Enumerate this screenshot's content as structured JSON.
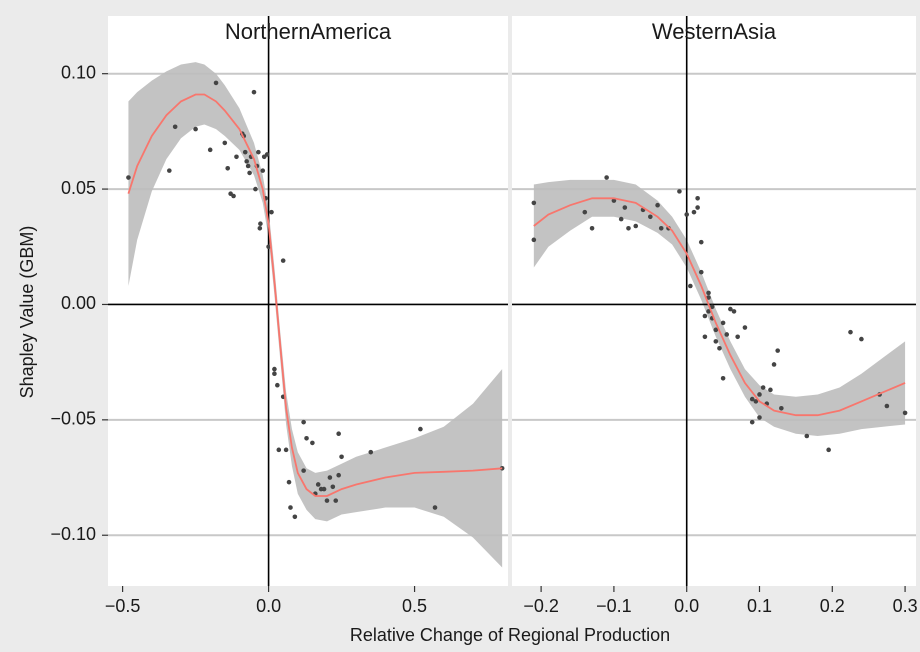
{
  "chart_data": {
    "type": "scatter",
    "xlabel": "Relative Change of Regional Production",
    "ylabel": "Shapley Value (GBM)",
    "ylim": [
      -0.122,
      0.125
    ],
    "yticks": [
      -0.1,
      -0.05,
      0.0,
      0.05,
      0.1
    ],
    "ytick_labels": [
      "−0.10",
      "−0.05",
      "0.00",
      "0.05",
      "0.10"
    ],
    "grid": true,
    "colors": {
      "points": "#444444",
      "smooth": "#f8766d",
      "ribbon": "#bdbdbd",
      "panel": "#ffffff",
      "background": "#ebebeb",
      "grid": "#c8c8c8",
      "reference": "#000000"
    },
    "panels": [
      {
        "name": "NorthernAmerica",
        "xlim": [
          -0.55,
          0.82
        ],
        "xticks": [
          -0.5,
          0.0,
          0.5
        ],
        "xtick_labels": [
          "−0.5",
          "0.0",
          "0.5"
        ],
        "points": [
          [
            -0.48,
            0.055
          ],
          [
            -0.32,
            0.077
          ],
          [
            -0.34,
            0.058
          ],
          [
            -0.25,
            0.076
          ],
          [
            -0.18,
            0.096
          ],
          [
            -0.2,
            0.067
          ],
          [
            -0.15,
            0.07
          ],
          [
            -0.14,
            0.059
          ],
          [
            -0.13,
            0.048
          ],
          [
            -0.12,
            0.047
          ],
          [
            -0.11,
            0.064
          ],
          [
            -0.09,
            0.074
          ],
          [
            -0.085,
            0.073
          ],
          [
            -0.08,
            0.066
          ],
          [
            -0.075,
            0.062
          ],
          [
            -0.07,
            0.06
          ],
          [
            -0.065,
            0.057
          ],
          [
            -0.06,
            0.064
          ],
          [
            -0.05,
            0.092
          ],
          [
            -0.045,
            0.05
          ],
          [
            -0.04,
            0.06
          ],
          [
            -0.035,
            0.066
          ],
          [
            -0.03,
            0.033
          ],
          [
            -0.028,
            0.035
          ],
          [
            -0.02,
            0.058
          ],
          [
            -0.015,
            0.064
          ],
          [
            -0.01,
            0.046
          ],
          [
            -0.005,
            0.065
          ],
          [
            0.0,
            0.025
          ],
          [
            0.01,
            0.04
          ],
          [
            0.02,
            -0.028
          ],
          [
            0.02,
            -0.03
          ],
          [
            0.03,
            -0.035
          ],
          [
            0.035,
            -0.063
          ],
          [
            0.05,
            0.019
          ],
          [
            0.05,
            -0.04
          ],
          [
            0.06,
            -0.063
          ],
          [
            0.07,
            -0.077
          ],
          [
            0.075,
            -0.088
          ],
          [
            0.09,
            -0.092
          ],
          [
            0.12,
            -0.051
          ],
          [
            0.12,
            -0.072
          ],
          [
            0.13,
            -0.058
          ],
          [
            0.15,
            -0.06
          ],
          [
            0.16,
            -0.082
          ],
          [
            0.17,
            -0.078
          ],
          [
            0.18,
            -0.08
          ],
          [
            0.19,
            -0.08
          ],
          [
            0.2,
            -0.085
          ],
          [
            0.21,
            -0.075
          ],
          [
            0.22,
            -0.079
          ],
          [
            0.23,
            -0.085
          ],
          [
            0.24,
            -0.074
          ],
          [
            0.25,
            -0.066
          ],
          [
            0.24,
            -0.056
          ],
          [
            0.35,
            -0.064
          ],
          [
            0.52,
            -0.054
          ],
          [
            0.57,
            -0.088
          ],
          [
            0.8,
            -0.071
          ]
        ],
        "smooth": [
          [
            -0.48,
            0.048
          ],
          [
            -0.45,
            0.06
          ],
          [
            -0.4,
            0.073
          ],
          [
            -0.35,
            0.082
          ],
          [
            -0.3,
            0.088
          ],
          [
            -0.25,
            0.091
          ],
          [
            -0.22,
            0.091
          ],
          [
            -0.18,
            0.088
          ],
          [
            -0.15,
            0.084
          ],
          [
            -0.1,
            0.076
          ],
          [
            -0.05,
            0.063
          ],
          [
            -0.02,
            0.05
          ],
          [
            0.0,
            0.035
          ],
          [
            0.02,
            0.01
          ],
          [
            0.04,
            -0.018
          ],
          [
            0.06,
            -0.045
          ],
          [
            0.08,
            -0.062
          ],
          [
            0.1,
            -0.073
          ],
          [
            0.13,
            -0.08
          ],
          [
            0.16,
            -0.083
          ],
          [
            0.2,
            -0.083
          ],
          [
            0.25,
            -0.08
          ],
          [
            0.3,
            -0.078
          ],
          [
            0.4,
            -0.075
          ],
          [
            0.5,
            -0.073
          ],
          [
            0.6,
            -0.0725
          ],
          [
            0.7,
            -0.072
          ],
          [
            0.8,
            -0.071
          ]
        ],
        "upper": [
          [
            -0.48,
            0.088
          ],
          [
            -0.45,
            0.092
          ],
          [
            -0.4,
            0.097
          ],
          [
            -0.35,
            0.101
          ],
          [
            -0.3,
            0.104
          ],
          [
            -0.25,
            0.105
          ],
          [
            -0.22,
            0.104
          ],
          [
            -0.18,
            0.1
          ],
          [
            -0.15,
            0.095
          ],
          [
            -0.1,
            0.085
          ],
          [
            -0.05,
            0.07
          ],
          [
            -0.02,
            0.056
          ],
          [
            0.0,
            0.041
          ],
          [
            0.02,
            0.016
          ],
          [
            0.04,
            -0.012
          ],
          [
            0.06,
            -0.038
          ],
          [
            0.08,
            -0.054
          ],
          [
            0.1,
            -0.064
          ],
          [
            0.13,
            -0.071
          ],
          [
            0.16,
            -0.073
          ],
          [
            0.2,
            -0.072
          ],
          [
            0.25,
            -0.069
          ],
          [
            0.3,
            -0.066
          ],
          [
            0.4,
            -0.062
          ],
          [
            0.5,
            -0.058
          ],
          [
            0.6,
            -0.053
          ],
          [
            0.7,
            -0.043
          ],
          [
            0.8,
            -0.028
          ]
        ],
        "lower": [
          [
            -0.48,
            0.008
          ],
          [
            -0.45,
            0.028
          ],
          [
            -0.4,
            0.049
          ],
          [
            -0.35,
            0.063
          ],
          [
            -0.3,
            0.072
          ],
          [
            -0.25,
            0.077
          ],
          [
            -0.22,
            0.078
          ],
          [
            -0.18,
            0.076
          ],
          [
            -0.15,
            0.073
          ],
          [
            -0.1,
            0.067
          ],
          [
            -0.05,
            0.056
          ],
          [
            -0.02,
            0.044
          ],
          [
            0.0,
            0.029
          ],
          [
            0.02,
            0.004
          ],
          [
            0.04,
            -0.024
          ],
          [
            0.06,
            -0.052
          ],
          [
            0.08,
            -0.07
          ],
          [
            0.1,
            -0.082
          ],
          [
            0.13,
            -0.089
          ],
          [
            0.16,
            -0.093
          ],
          [
            0.2,
            -0.094
          ],
          [
            0.25,
            -0.091
          ],
          [
            0.3,
            -0.09
          ],
          [
            0.4,
            -0.088
          ],
          [
            0.5,
            -0.088
          ],
          [
            0.6,
            -0.092
          ],
          [
            0.7,
            -0.101
          ],
          [
            0.8,
            -0.114
          ]
        ]
      },
      {
        "name": "WesternAsia",
        "xlim": [
          -0.24,
          0.315
        ],
        "xticks": [
          -0.2,
          -0.1,
          0.0,
          0.1,
          0.2,
          0.3
        ],
        "xtick_labels": [
          "−0.2",
          "−0.1",
          "0.0",
          "0.1",
          "0.2",
          "0.3"
        ],
        "points": [
          [
            -0.21,
            0.044
          ],
          [
            -0.21,
            0.028
          ],
          [
            -0.14,
            0.04
          ],
          [
            -0.13,
            0.033
          ],
          [
            -0.11,
            0.055
          ],
          [
            -0.1,
            0.045
          ],
          [
            -0.09,
            0.037
          ],
          [
            -0.085,
            0.042
          ],
          [
            -0.08,
            0.033
          ],
          [
            -0.07,
            0.034
          ],
          [
            -0.06,
            0.041
          ],
          [
            -0.05,
            0.038
          ],
          [
            -0.04,
            0.043
          ],
          [
            -0.035,
            0.033
          ],
          [
            -0.025,
            0.033
          ],
          [
            -0.01,
            0.049
          ],
          [
            0.0,
            0.039
          ],
          [
            0.005,
            0.008
          ],
          [
            0.01,
            0.04
          ],
          [
            0.015,
            0.046
          ],
          [
            0.015,
            0.042
          ],
          [
            0.02,
            0.027
          ],
          [
            0.02,
            0.014
          ],
          [
            0.025,
            -0.005
          ],
          [
            0.025,
            -0.014
          ],
          [
            0.03,
            0.005
          ],
          [
            0.03,
            0.003
          ],
          [
            0.03,
            -0.003
          ],
          [
            0.035,
            -0.001
          ],
          [
            0.035,
            -0.006
          ],
          [
            0.04,
            -0.011
          ],
          [
            0.04,
            -0.016
          ],
          [
            0.045,
            -0.019
          ],
          [
            0.05,
            -0.032
          ],
          [
            0.05,
            -0.008
          ],
          [
            0.055,
            -0.013
          ],
          [
            0.06,
            -0.002
          ],
          [
            0.065,
            -0.003
          ],
          [
            0.07,
            -0.014
          ],
          [
            0.08,
            -0.01
          ],
          [
            0.09,
            -0.051
          ],
          [
            0.09,
            -0.041
          ],
          [
            0.095,
            -0.042
          ],
          [
            0.1,
            -0.049
          ],
          [
            0.1,
            -0.039
          ],
          [
            0.105,
            -0.036
          ],
          [
            0.11,
            -0.043
          ],
          [
            0.115,
            -0.037
          ],
          [
            0.12,
            -0.026
          ],
          [
            0.125,
            -0.02
          ],
          [
            0.13,
            -0.045
          ],
          [
            0.165,
            -0.057
          ],
          [
            0.195,
            -0.063
          ],
          [
            0.225,
            -0.012
          ],
          [
            0.24,
            -0.015
          ],
          [
            0.265,
            -0.039
          ],
          [
            0.275,
            -0.044
          ],
          [
            0.3,
            -0.047
          ]
        ],
        "smooth": [
          [
            -0.21,
            0.034
          ],
          [
            -0.19,
            0.039
          ],
          [
            -0.16,
            0.043
          ],
          [
            -0.13,
            0.046
          ],
          [
            -0.1,
            0.046
          ],
          [
            -0.07,
            0.044
          ],
          [
            -0.04,
            0.038
          ],
          [
            -0.02,
            0.032
          ],
          [
            0.0,
            0.022
          ],
          [
            0.02,
            0.008
          ],
          [
            0.04,
            -0.008
          ],
          [
            0.06,
            -0.022
          ],
          [
            0.08,
            -0.034
          ],
          [
            0.1,
            -0.042
          ],
          [
            0.12,
            -0.046
          ],
          [
            0.15,
            -0.048
          ],
          [
            0.18,
            -0.048
          ],
          [
            0.21,
            -0.046
          ],
          [
            0.24,
            -0.042
          ],
          [
            0.27,
            -0.038
          ],
          [
            0.3,
            -0.034
          ]
        ],
        "upper": [
          [
            -0.21,
            0.052
          ],
          [
            -0.19,
            0.053
          ],
          [
            -0.16,
            0.054
          ],
          [
            -0.13,
            0.054
          ],
          [
            -0.1,
            0.054
          ],
          [
            -0.07,
            0.052
          ],
          [
            -0.04,
            0.045
          ],
          [
            -0.02,
            0.038
          ],
          [
            0.0,
            0.028
          ],
          [
            0.02,
            0.014
          ],
          [
            0.04,
            -0.002
          ],
          [
            0.06,
            -0.016
          ],
          [
            0.08,
            -0.028
          ],
          [
            0.1,
            -0.035
          ],
          [
            0.12,
            -0.039
          ],
          [
            0.15,
            -0.04
          ],
          [
            0.18,
            -0.039
          ],
          [
            0.21,
            -0.036
          ],
          [
            0.24,
            -0.03
          ],
          [
            0.27,
            -0.023
          ],
          [
            0.3,
            -0.016
          ]
        ],
        "lower": [
          [
            -0.21,
            0.016
          ],
          [
            -0.19,
            0.025
          ],
          [
            -0.16,
            0.032
          ],
          [
            -0.13,
            0.038
          ],
          [
            -0.1,
            0.038
          ],
          [
            -0.07,
            0.036
          ],
          [
            -0.04,
            0.031
          ],
          [
            -0.02,
            0.026
          ],
          [
            0.0,
            0.016
          ],
          [
            0.02,
            0.002
          ],
          [
            0.04,
            -0.014
          ],
          [
            0.06,
            -0.028
          ],
          [
            0.08,
            -0.04
          ],
          [
            0.1,
            -0.049
          ],
          [
            0.12,
            -0.053
          ],
          [
            0.15,
            -0.056
          ],
          [
            0.18,
            -0.057
          ],
          [
            0.21,
            -0.056
          ],
          [
            0.24,
            -0.054
          ],
          [
            0.27,
            -0.053
          ],
          [
            0.3,
            -0.052
          ]
        ]
      }
    ]
  }
}
